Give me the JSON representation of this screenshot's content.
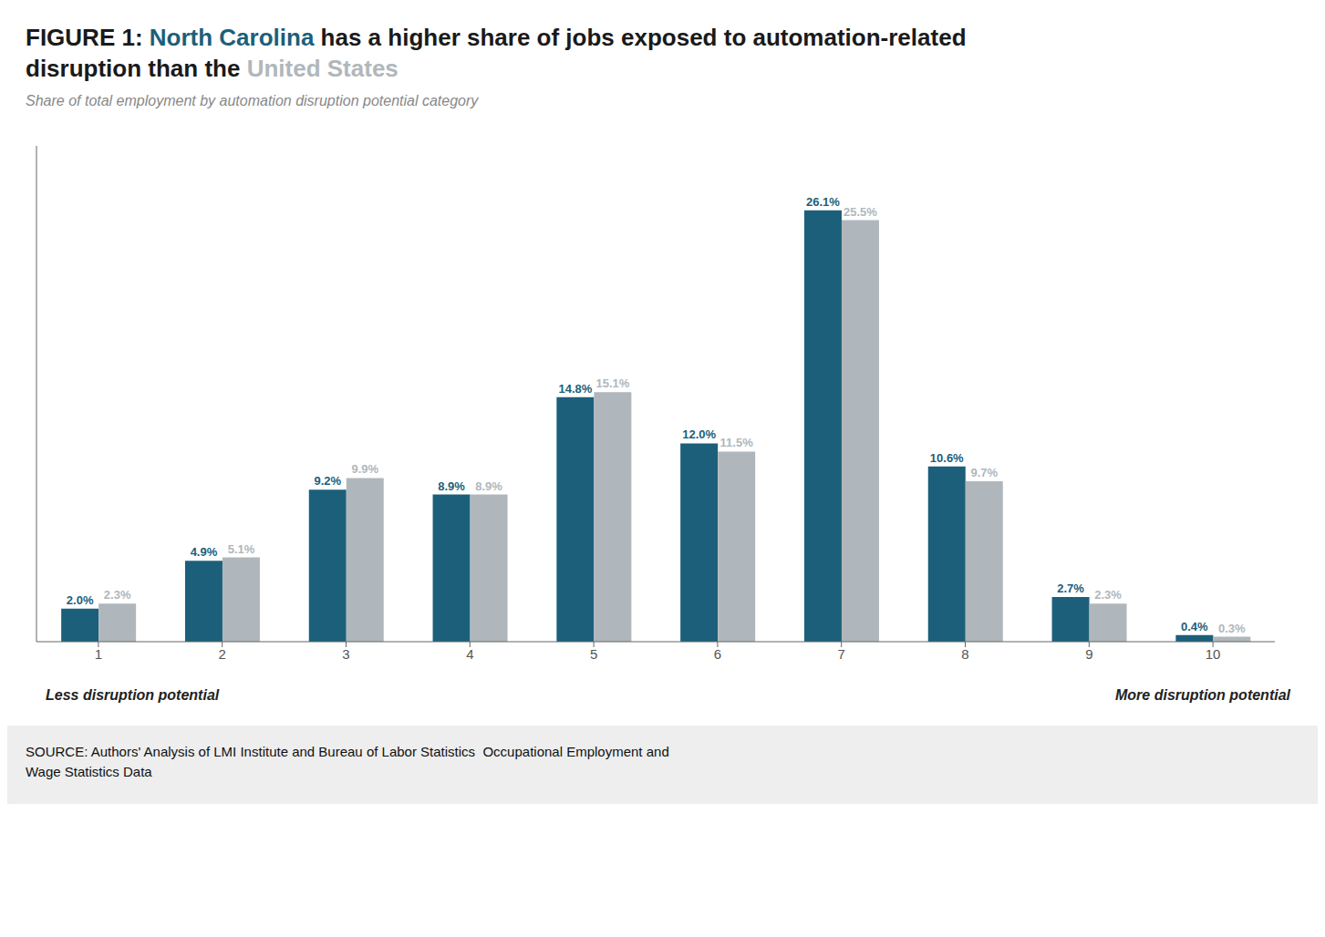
{
  "chart_data": {
    "type": "bar",
    "title": "FIGURE 1: North Carolina has a higher share of jobs exposed to automation-related\ndisruption than the United States",
    "subtitle": "Share of total employment by automation disruption potential category",
    "annotations": [
      "Less disruption potential",
      "More disruption potential"
    ],
    "source": "SOURCE: Authors' Analysis of LMI Institute and Bureau of Labor Statistics  Occupational Employment and\nWage Statistics Data",
    "categories": [
      1,
      2,
      3,
      4,
      5,
      6,
      7,
      8,
      9,
      10
    ],
    "series": [
      {
        "name": "North Carolina",
        "color": "#1c5f7a",
        "values": [
          2.0,
          4.9,
          9.2,
          8.9,
          14.8,
          12.0,
          26.1,
          10.6,
          2.7,
          0.4
        ],
        "value_labels": [
          "2.0%",
          "4.9%",
          "9.2%",
          "8.9%",
          "14.8%",
          "12.0%",
          "26.1%",
          "10.6%",
          "2.7%",
          "0.4%"
        ]
      },
      {
        "name": "United States",
        "color": "#b0b7bc",
        "values": [
          2.3,
          5.1,
          9.9,
          8.9,
          15.1,
          11.5,
          25.5,
          9.7,
          2.3,
          0.3
        ],
        "value_labels": [
          "2.3%",
          "5.1%",
          "9.9%",
          "8.9%",
          "15.1%",
          "11.5%",
          "25.5%",
          "9.7%",
          "2.3%",
          "0.3%"
        ]
      }
    ],
    "ylim": [
      0,
      30
    ],
    "grid": false,
    "data_labels": true,
    "tick_labels": "x"
  }
}
